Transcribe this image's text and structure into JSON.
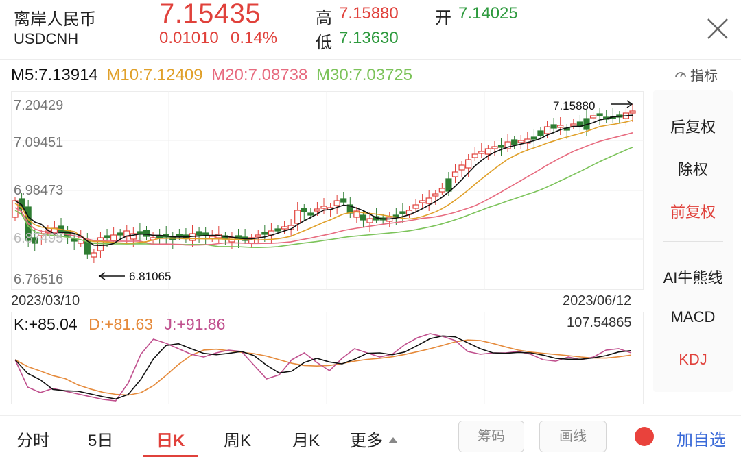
{
  "header": {
    "name": "离岸人民币",
    "code": "USDCNH",
    "price": "7.15435",
    "change": "0.01010",
    "change_pct": "0.14%",
    "high_label": "高",
    "high_value": "7.15880",
    "open_label": "开",
    "open_value": "7.14025",
    "low_label": "低",
    "low_value": "7.13630"
  },
  "ma": {
    "m5": "M5:7.13914",
    "m10": "M10:7.12409",
    "m20": "M20:7.08738",
    "m30": "M30:7.03725",
    "indicator_label": "指标"
  },
  "kchart": {
    "y_labels": [
      "7.20429",
      "7.09451",
      "6.98473",
      "6.87495",
      "6.76516"
    ],
    "max_annotation": "7.15880",
    "min_annotation": "6.81065",
    "date_start": "2023/03/10",
    "date_end": "2023/06/12"
  },
  "kdj": {
    "k": "K:+85.04",
    "d": "D:+81.63",
    "j": "J:+91.86",
    "max": "107.54865"
  },
  "side": {
    "options": [
      "后复权",
      "除权",
      "前复权",
      "AI牛熊线",
      "MACD",
      "KDJ"
    ]
  },
  "tabs": {
    "items": [
      "分时",
      "5日",
      "日K",
      "周K",
      "月K",
      "更多"
    ],
    "active": "日K",
    "chip_button": "筹码",
    "draw_button": "画线",
    "add_watchlist": "加自选"
  },
  "colors": {
    "up": "#e0413b",
    "down": "#2e7d32",
    "ma5": "#111111",
    "ma10": "#e0a02a",
    "ma20": "#e76b7f",
    "ma30": "#7cc35a",
    "j": "#c0508e",
    "d": "#e58a3b",
    "k": "#111111",
    "accent_blue": "#3a6ad8"
  }
}
